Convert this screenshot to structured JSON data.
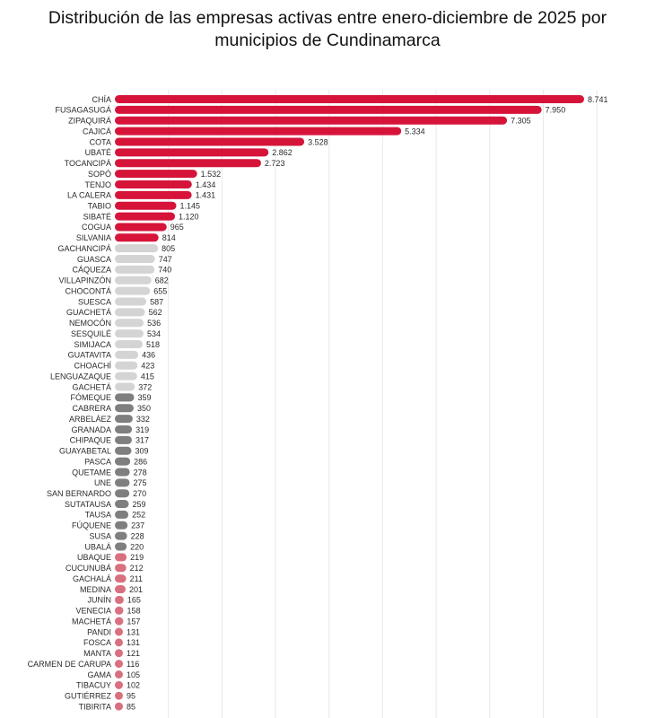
{
  "title_lines": [
    "Distribución de las empresas activas entre enero-diciembre de 2025 por",
    "municipios de Cundinamarca"
  ],
  "colors": {
    "red": "#d6143a",
    "light_gray": "#d4d4d4",
    "dark_gray": "#7f7f7f",
    "pink": "#d9707f",
    "gridline": "#e8e8e8"
  },
  "chart_data": {
    "type": "bar",
    "orientation": "horizontal",
    "title": "Distribución de las empresas activas entre enero-diciembre de 2025 por municipios de Cundinamarca",
    "xlabel": "",
    "ylabel": "",
    "grid": true,
    "xlim": [
      0,
      9000
    ],
    "categories": [
      "CHÍA",
      "FUSAGASUGÁ",
      "ZIPAQUIRÁ",
      "CAJICÁ",
      "COTA",
      "UBATÉ",
      "TOCANCIPÁ",
      "SOPÓ",
      "TENJO",
      "LA CALERA",
      "TABIO",
      "SIBATÉ",
      "COGUA",
      "SILVANIA",
      "GACHANCIPÁ",
      "GUASCA",
      "CÁQUEZA",
      "VILLAPINZÓN",
      "CHOCONTÁ",
      "SUESCA",
      "GUACHETÁ",
      "NEMOCÓN",
      "SESQUILÉ",
      "SIMIJACA",
      "GUATAVITA",
      "CHOACHÍ",
      "LENGUAZAQUE",
      "GACHETÁ",
      "FÓMEQUE",
      "CABRERA",
      "ARBELÁEZ",
      "GRANADA",
      "CHIPAQUE",
      "GUAYABETAL",
      "PASCA",
      "QUETAME",
      "UNE",
      "SAN BERNARDO",
      "SUTATAUSA",
      "TAUSA",
      "FÚQUENE",
      "SUSA",
      "UBALÁ",
      "UBAQUE",
      "CUCUNUBÁ",
      "GACHALÁ",
      "MEDINA",
      "JUNÍN",
      "VENECIA",
      "MACHETÁ",
      "PANDI",
      "FOSCA",
      "MANTA",
      "CARMEN DE CARUPA",
      "GAMA",
      "TIBACUY",
      "GUTIÉRREZ",
      "TIBIRITA"
    ],
    "values": [
      8741,
      7950,
      7305,
      5334,
      3528,
      2862,
      2723,
      1532,
      1434,
      1431,
      1145,
      1120,
      965,
      814,
      805,
      747,
      740,
      682,
      655,
      587,
      562,
      536,
      534,
      518,
      436,
      423,
      415,
      372,
      359,
      350,
      332,
      319,
      317,
      309,
      286,
      278,
      275,
      270,
      259,
      252,
      237,
      228,
      220,
      219,
      212,
      211,
      201,
      165,
      158,
      157,
      131,
      131,
      121,
      116,
      105,
      102,
      95,
      85
    ],
    "value_labels": [
      "8.741",
      "7.950",
      "7.305",
      "5.334",
      "3.528",
      "2.862",
      "2.723",
      "1.532",
      "1.434",
      "1.431",
      "1.145",
      "1.120",
      "965",
      "814",
      "805",
      "747",
      "740",
      "682",
      "655",
      "587",
      "562",
      "536",
      "534",
      "518",
      "436",
      "423",
      "415",
      "372",
      "359",
      "350",
      "332",
      "319",
      "317",
      "309",
      "286",
      "278",
      "275",
      "270",
      "259",
      "252",
      "237",
      "228",
      "220",
      "219",
      "212",
      "211",
      "201",
      "165",
      "158",
      "157",
      "131",
      "131",
      "121",
      "116",
      "105",
      "102",
      "95",
      "85"
    ],
    "color_groups": [
      "red",
      "red",
      "red",
      "red",
      "red",
      "red",
      "red",
      "red",
      "red",
      "red",
      "red",
      "red",
      "red",
      "red",
      "light_gray",
      "light_gray",
      "light_gray",
      "light_gray",
      "light_gray",
      "light_gray",
      "light_gray",
      "light_gray",
      "light_gray",
      "light_gray",
      "light_gray",
      "light_gray",
      "light_gray",
      "light_gray",
      "dark_gray",
      "dark_gray",
      "dark_gray",
      "dark_gray",
      "dark_gray",
      "dark_gray",
      "dark_gray",
      "dark_gray",
      "dark_gray",
      "dark_gray",
      "dark_gray",
      "dark_gray",
      "dark_gray",
      "dark_gray",
      "dark_gray",
      "pink",
      "pink",
      "pink",
      "pink",
      "pink",
      "pink",
      "pink",
      "pink",
      "pink",
      "pink",
      "pink",
      "pink",
      "pink",
      "pink",
      "pink"
    ]
  }
}
